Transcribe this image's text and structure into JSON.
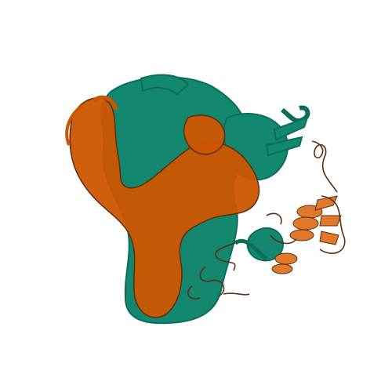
{
  "image": {
    "subject": "protein-structure-cartoon",
    "background_color": "#ffffff",
    "colors": {
      "chain_orange": "#cc5500",
      "chain_orange_light": "#e07a2a",
      "chain_teal": "#13886f",
      "chain_teal_dark": "#0b6e58",
      "loop_dark": "#5a2f12"
    }
  }
}
